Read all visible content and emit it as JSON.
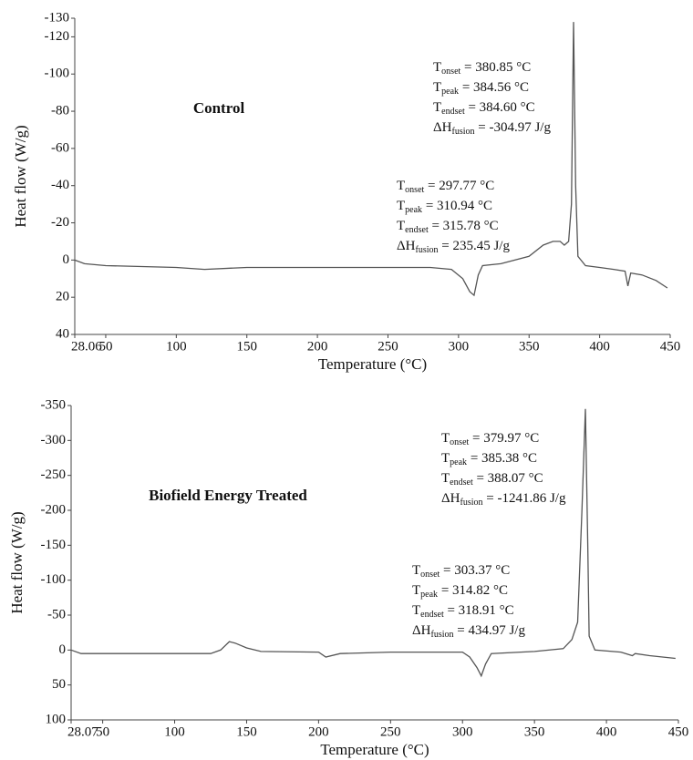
{
  "chart_data": [
    {
      "type": "line",
      "label": "Control",
      "x_label": "Temperature (°C)",
      "y_label": "Heat flow (W/g)",
      "xlim": [
        28.06,
        450
      ],
      "xticks": [
        28.06,
        50,
        100,
        150,
        200,
        250,
        300,
        350,
        400,
        450
      ],
      "ylim": [
        -130,
        40
      ],
      "y_inverted": true,
      "yticks": [
        -130,
        -120,
        -100,
        -80,
        -60,
        -40,
        -20,
        0,
        20,
        40
      ],
      "color": "#555555",
      "x": [
        28.06,
        35,
        50,
        100,
        120,
        150,
        200,
        250,
        280,
        295,
        303,
        308,
        311,
        314,
        317,
        330,
        350,
        360,
        367,
        372,
        375,
        378,
        380,
        381.5,
        383,
        384.6,
        390,
        400,
        410,
        418,
        420,
        422,
        430,
        440,
        448
      ],
      "values": [
        0,
        2,
        3,
        4,
        5,
        4,
        4,
        4,
        4,
        5,
        10,
        17,
        19,
        8,
        3,
        2,
        -2,
        -8,
        -10,
        -10,
        -8,
        -10,
        -30,
        -128,
        -40,
        -2,
        3,
        4,
        5,
        6,
        14,
        7,
        8,
        11,
        15
      ],
      "annotations": [
        [
          {
            "symbol": "T",
            "subscript": "onset",
            "text": " = 380.85 °C"
          },
          {
            "symbol": "T",
            "subscript": "peak",
            "text": " = 384.56 °C"
          },
          {
            "symbol": "T",
            "subscript": "endset",
            "text": " = 384.60 °C"
          },
          {
            "symbol": "ΔH",
            "subscript": "fusion",
            "text": " = -304.97 J/g"
          }
        ],
        [
          {
            "symbol": "T",
            "subscript": "onset",
            "text": " = 297.77 °C"
          },
          {
            "symbol": "T",
            "subscript": "peak",
            "text": " = 310.94 °C"
          },
          {
            "symbol": "T",
            "subscript": "endset",
            "text": " = 315.78 °C"
          },
          {
            "symbol": "ΔH",
            "subscript": "fusion",
            "text": " = 235.45 J/g"
          }
        ]
      ]
    },
    {
      "type": "line",
      "label": "Biofield Energy Treated",
      "x_label": "Temperature (°C)",
      "y_label": "Heat flow (W/g)",
      "xlim": [
        28.07,
        450
      ],
      "xticks": [
        28.07,
        50,
        100,
        150,
        200,
        250,
        300,
        350,
        400,
        450
      ],
      "ylim": [
        -350,
        100
      ],
      "y_inverted": true,
      "yticks": [
        -350,
        -300,
        -250,
        -200,
        -150,
        -100,
        -50,
        0,
        50,
        100
      ],
      "color": "#555555",
      "x": [
        28.07,
        35,
        50,
        100,
        125,
        132,
        138,
        142,
        150,
        160,
        200,
        205,
        215,
        250,
        300,
        305,
        310,
        313,
        316,
        320,
        350,
        370,
        376,
        380,
        383,
        385.4,
        387,
        388,
        392,
        410,
        418,
        420,
        430,
        448
      ],
      "values": [
        0,
        5,
        5,
        5,
        5,
        0,
        -12,
        -10,
        -3,
        2,
        3,
        10,
        5,
        3,
        3,
        10,
        25,
        37,
        20,
        5,
        2,
        -2,
        -15,
        -40,
        -200,
        -345,
        -150,
        -20,
        0,
        3,
        8,
        5,
        8,
        12
      ],
      "annotations": [
        [
          {
            "symbol": "T",
            "subscript": "onset",
            "text": " = 379.97 °C"
          },
          {
            "symbol": "T",
            "subscript": "peak",
            "text": " = 385.38 °C"
          },
          {
            "symbol": "T",
            "subscript": "endset",
            "text": " = 388.07 °C"
          },
          {
            "symbol": "ΔH",
            "subscript": "fusion",
            "text": " = -1241.86 J/g"
          }
        ],
        [
          {
            "symbol": "T",
            "subscript": "onset",
            "text": " = 303.37 °C"
          },
          {
            "symbol": "T",
            "subscript": "peak",
            "text": " = 314.82 °C"
          },
          {
            "symbol": "T",
            "subscript": "endset",
            "text": " = 318.91 °C"
          },
          {
            "symbol": "ΔH",
            "subscript": "fusion",
            "text": " = 434.97 J/g"
          }
        ]
      ]
    }
  ]
}
